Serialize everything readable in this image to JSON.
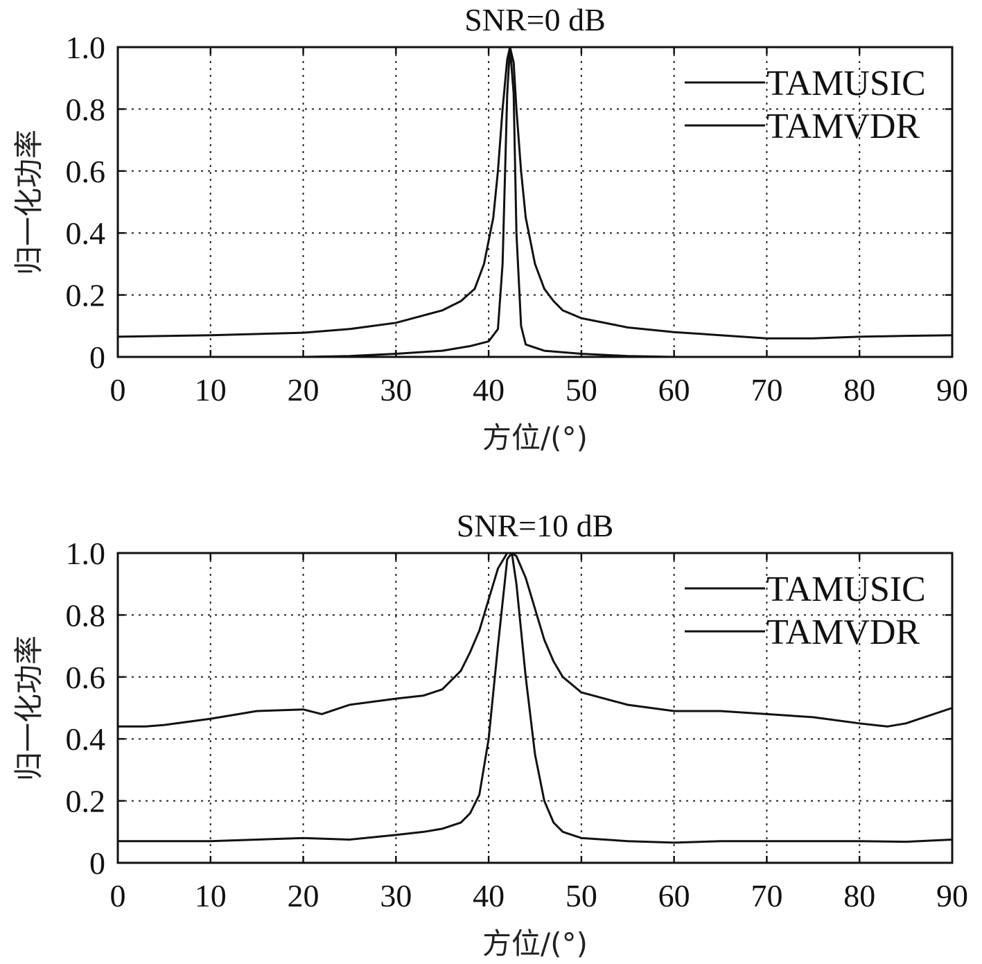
{
  "chart_data": [
    {
      "type": "line",
      "title": "SNR=0 dB",
      "xlabel": "方位/(°)",
      "ylabel": "归一化功率",
      "xlim": [
        0,
        90
      ],
      "ylim": [
        0,
        1.0
      ],
      "xticks": [
        0,
        10,
        20,
        30,
        40,
        50,
        60,
        70,
        80,
        90
      ],
      "xtick_labels": [
        "0",
        "10",
        "20",
        "30",
        "40",
        "50",
        "60",
        "70",
        "80",
        "90"
      ],
      "yticks": [
        0,
        0.2,
        0.4,
        0.6,
        0.8,
        1.0
      ],
      "ytick_labels": [
        "0",
        "0.2",
        "0.4",
        "0.6",
        "0.8",
        "1.0"
      ],
      "grid": true,
      "legend_position": "top-right",
      "series": [
        {
          "name": "TAMUSIC",
          "x": [
            0,
            10,
            20,
            25,
            30,
            35,
            38,
            40,
            41,
            41.5,
            42,
            42.3,
            42.7,
            43,
            43.5,
            44,
            46,
            50,
            55,
            60,
            70,
            80,
            90
          ],
          "y": [
            0.0,
            0.0,
            0.0,
            0.003,
            0.01,
            0.02,
            0.035,
            0.05,
            0.09,
            0.3,
            0.85,
            1.0,
            0.85,
            0.4,
            0.1,
            0.04,
            0.02,
            0.01,
            0.003,
            0.0,
            0.0,
            0.0,
            0.0
          ]
        },
        {
          "name": "TAMVDR",
          "x": [
            0,
            10,
            20,
            25,
            30,
            35,
            37,
            38.5,
            39.5,
            40.5,
            41,
            41.5,
            42,
            42.3,
            42.7,
            43,
            43.5,
            44,
            45,
            46,
            47,
            48,
            50,
            55,
            60,
            65,
            70,
            75,
            80,
            85,
            90
          ],
          "y": [
            0.065,
            0.07,
            0.078,
            0.09,
            0.11,
            0.15,
            0.18,
            0.22,
            0.3,
            0.45,
            0.6,
            0.8,
            0.96,
            1.0,
            0.95,
            0.8,
            0.6,
            0.45,
            0.3,
            0.22,
            0.18,
            0.15,
            0.125,
            0.095,
            0.08,
            0.07,
            0.06,
            0.06,
            0.065,
            0.068,
            0.07
          ]
        }
      ]
    },
    {
      "type": "line",
      "title": "SNR=10 dB",
      "xlabel": "方位/(°)",
      "ylabel": "归一化功率",
      "xlim": [
        0,
        90
      ],
      "ylim": [
        0,
        1.0
      ],
      "xticks": [
        0,
        10,
        20,
        30,
        40,
        50,
        60,
        70,
        80,
        90
      ],
      "xtick_labels": [
        "0",
        "10",
        "20",
        "30",
        "40",
        "50",
        "60",
        "70",
        "80",
        "90"
      ],
      "yticks": [
        0,
        0.2,
        0.4,
        0.6,
        0.8,
        1.0
      ],
      "ytick_labels": [
        "0",
        "0.2",
        "0.4",
        "0.6",
        "0.8",
        "1.0"
      ],
      "grid": true,
      "legend_position": "top-right",
      "series": [
        {
          "name": "TAMUSIC",
          "x": [
            0,
            5,
            10,
            15,
            20,
            25,
            30,
            33,
            35,
            37,
            38,
            39,
            40,
            41,
            42,
            42.5,
            43,
            44,
            45,
            46,
            47,
            48,
            49,
            50,
            55,
            60,
            65,
            70,
            75,
            80,
            85,
            90
          ],
          "y": [
            0.07,
            0.07,
            0.07,
            0.075,
            0.08,
            0.075,
            0.09,
            0.1,
            0.11,
            0.13,
            0.16,
            0.22,
            0.4,
            0.7,
            0.98,
            1.0,
            0.9,
            0.6,
            0.35,
            0.2,
            0.13,
            0.1,
            0.09,
            0.08,
            0.07,
            0.065,
            0.07,
            0.07,
            0.07,
            0.07,
            0.068,
            0.075
          ]
        },
        {
          "name": "TAMVDR",
          "x": [
            0,
            3,
            5,
            10,
            15,
            20,
            22,
            25,
            30,
            33,
            35,
            37,
            38,
            39,
            40,
            41,
            42,
            42.5,
            43,
            44,
            45,
            46,
            47,
            48,
            50,
            55,
            60,
            65,
            70,
            75,
            80,
            83,
            85,
            90
          ],
          "y": [
            0.44,
            0.44,
            0.445,
            0.465,
            0.49,
            0.495,
            0.48,
            0.51,
            0.53,
            0.54,
            0.56,
            0.62,
            0.68,
            0.75,
            0.85,
            0.95,
            1.0,
            1.0,
            0.99,
            0.92,
            0.82,
            0.72,
            0.65,
            0.6,
            0.55,
            0.51,
            0.49,
            0.49,
            0.48,
            0.47,
            0.45,
            0.44,
            0.45,
            0.5
          ]
        }
      ]
    }
  ]
}
